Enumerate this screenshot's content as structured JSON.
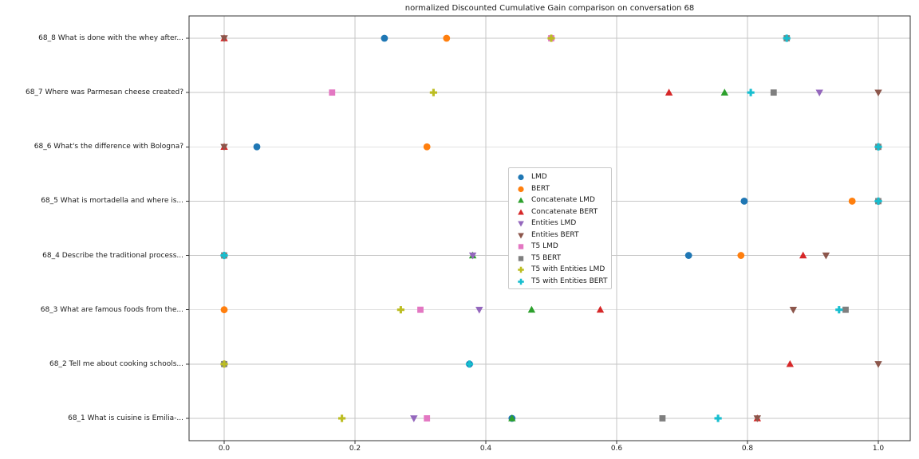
{
  "chart_data": {
    "type": "scatter",
    "title": "normalized Discounted Cumulative Gain comparison on conversation 68",
    "xlabel": "",
    "ylabel": "",
    "grid": true,
    "legend_position": "center",
    "xlim": [
      -0.055,
      1.05
    ],
    "x_tick_values": [
      0.0,
      0.2,
      0.4,
      0.6,
      0.8,
      1.0
    ],
    "x_tick_labels": [
      "0.0",
      "0.2",
      "0.4",
      "0.6",
      "0.8",
      "1.0"
    ],
    "categories": [
      "68_8 What is done with the whey after...",
      "68_7 Where was Parmesan cheese created?",
      "68_6 What's the difference with Bologna?",
      "68_5 What is mortadella and where is...",
      "68_4 Describe the traditional process...",
      "68_3 What are famous foods from the...",
      "68_2 Tell me about cooking schools...",
      "68_1 What is cuisine is Emilia-..."
    ],
    "series": [
      {
        "name": "LMD",
        "marker": "circle",
        "color": "#1f77b4",
        "values": [
          0.245,
          null,
          0.05,
          0.795,
          0.71,
          null,
          0.375,
          0.44
        ]
      },
      {
        "name": "BERT",
        "marker": "circle",
        "color": "#ff7f0e",
        "values": [
          0.34,
          null,
          0.31,
          0.96,
          0.79,
          0.0,
          null,
          null
        ]
      },
      {
        "name": "Concatenate LMD",
        "marker": "triangle-up",
        "color": "#2ca02c",
        "values": [
          null,
          0.765,
          null,
          null,
          0.38,
          0.47,
          null,
          0.44
        ]
      },
      {
        "name": "Concatenate BERT",
        "marker": "triangle-up",
        "color": "#d62728",
        "values": [
          0.0,
          0.68,
          0.0,
          null,
          0.885,
          0.575,
          0.865,
          0.815
        ]
      },
      {
        "name": "Entities LMD",
        "marker": "triangle-down",
        "color": "#9467bd",
        "values": [
          null,
          0.91,
          null,
          null,
          0.38,
          0.39,
          null,
          0.29
        ]
      },
      {
        "name": "Entities BERT",
        "marker": "triangle-down",
        "color": "#8c564b",
        "values": [
          0.0,
          1.0,
          0.0,
          null,
          0.92,
          0.87,
          1.0,
          0.815
        ]
      },
      {
        "name": "T5 LMD",
        "marker": "square",
        "color": "#e377c2",
        "values": [
          0.5,
          0.165,
          null,
          null,
          null,
          0.3,
          null,
          0.31
        ]
      },
      {
        "name": "T5 BERT",
        "marker": "square",
        "color": "#7f7f7f",
        "values": [
          0.86,
          0.84,
          1.0,
          1.0,
          0.0,
          0.95,
          0.0,
          0.67
        ]
      },
      {
        "name": "T5 with Entities LMD",
        "marker": "plus",
        "color": "#bcbd22",
        "values": [
          0.5,
          0.32,
          null,
          null,
          null,
          0.27,
          0.0,
          0.18
        ]
      },
      {
        "name": "T5 with Entities BERT",
        "marker": "plus",
        "color": "#17becf",
        "values": [
          0.86,
          0.805,
          1.0,
          1.0,
          0.0,
          0.94,
          0.375,
          0.755
        ]
      }
    ]
  },
  "style": {
    "grid_color": "#c6c6c6",
    "spine_color": "#333333",
    "tick_color": "#333333"
  }
}
